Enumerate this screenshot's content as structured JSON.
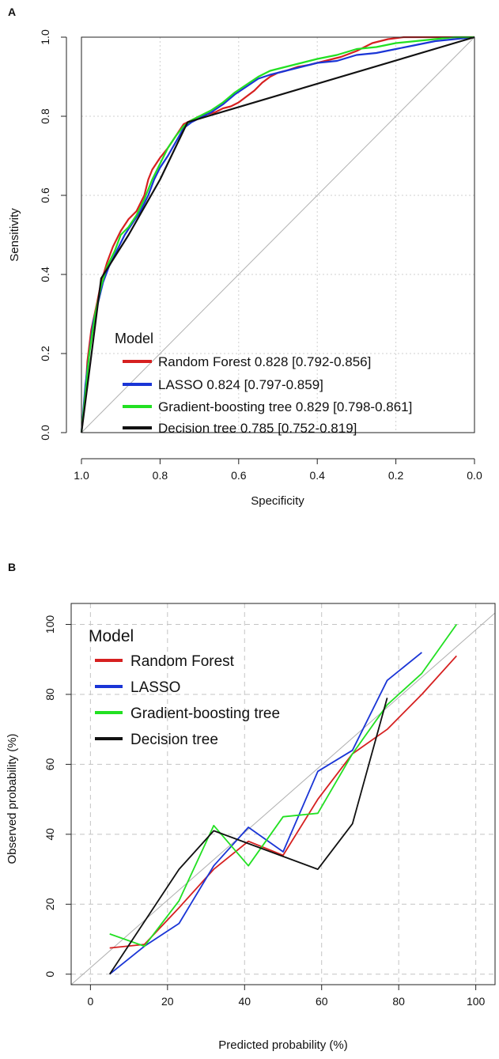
{
  "chart_data": [
    {
      "panel_label": "A",
      "type": "line",
      "title": "",
      "xlabel": "Specificity",
      "ylabel": "Sensitivity",
      "xlim": [
        1.0,
        0.0
      ],
      "ylim": [
        0.0,
        1.0
      ],
      "x_ticks": [
        "1.0",
        "0.8",
        "0.6",
        "0.4",
        "0.2",
        "0.0"
      ],
      "y_ticks": [
        "0.0",
        "0.2",
        "0.4",
        "0.6",
        "0.8",
        "1.0"
      ],
      "grid": true,
      "reference_line": "diagonal",
      "legend": {
        "title": "Model",
        "position": "bottom-right",
        "entries": [
          "Random Forest 0.828 [0.792-0.856]",
          "LASSO 0.824 [0.797-0.859]",
          "Gradient-boosting tree 0.829 [0.798-0.861]",
          "Decision tree 0.785 [0.752-0.819]"
        ]
      },
      "series": [
        {
          "name": "Random Forest",
          "color": "#d62020",
          "points": [
            [
              1.0,
              0.0
            ],
            [
              0.99,
              0.1
            ],
            [
              0.985,
              0.18
            ],
            [
              0.975,
              0.26
            ],
            [
              0.96,
              0.33
            ],
            [
              0.95,
              0.38
            ],
            [
              0.935,
              0.43
            ],
            [
              0.92,
              0.47
            ],
            [
              0.9,
              0.51
            ],
            [
              0.88,
              0.54
            ],
            [
              0.86,
              0.56
            ],
            [
              0.84,
              0.6
            ],
            [
              0.83,
              0.64
            ],
            [
              0.82,
              0.665
            ],
            [
              0.8,
              0.695
            ],
            [
              0.78,
              0.72
            ],
            [
              0.76,
              0.75
            ],
            [
              0.74,
              0.78
            ],
            [
              0.72,
              0.79
            ],
            [
              0.7,
              0.8
            ],
            [
              0.68,
              0.805
            ],
            [
              0.66,
              0.81
            ],
            [
              0.64,
              0.82
            ],
            [
              0.62,
              0.825
            ],
            [
              0.6,
              0.835
            ],
            [
              0.58,
              0.85
            ],
            [
              0.56,
              0.865
            ],
            [
              0.54,
              0.885
            ],
            [
              0.52,
              0.9
            ],
            [
              0.5,
              0.91
            ],
            [
              0.48,
              0.915
            ],
            [
              0.45,
              0.925
            ],
            [
              0.42,
              0.93
            ],
            [
              0.38,
              0.94
            ],
            [
              0.34,
              0.95
            ],
            [
              0.3,
              0.965
            ],
            [
              0.26,
              0.985
            ],
            [
              0.22,
              0.995
            ],
            [
              0.18,
              1.0
            ],
            [
              0.0,
              1.0
            ]
          ]
        },
        {
          "name": "LASSO",
          "color": "#1a35d6",
          "points": [
            [
              1.0,
              0.0
            ],
            [
              0.99,
              0.12
            ],
            [
              0.98,
              0.2
            ],
            [
              0.97,
              0.28
            ],
            [
              0.955,
              0.34
            ],
            [
              0.945,
              0.38
            ],
            [
              0.93,
              0.42
            ],
            [
              0.91,
              0.46
            ],
            [
              0.89,
              0.5
            ],
            [
              0.87,
              0.53
            ],
            [
              0.85,
              0.56
            ],
            [
              0.83,
              0.6
            ],
            [
              0.815,
              0.64
            ],
            [
              0.8,
              0.67
            ],
            [
              0.78,
              0.7
            ],
            [
              0.76,
              0.735
            ],
            [
              0.74,
              0.77
            ],
            [
              0.72,
              0.785
            ],
            [
              0.7,
              0.795
            ],
            [
              0.67,
              0.81
            ],
            [
              0.64,
              0.83
            ],
            [
              0.61,
              0.855
            ],
            [
              0.58,
              0.875
            ],
            [
              0.55,
              0.895
            ],
            [
              0.52,
              0.905
            ],
            [
              0.48,
              0.915
            ],
            [
              0.44,
              0.925
            ],
            [
              0.4,
              0.935
            ],
            [
              0.35,
              0.94
            ],
            [
              0.3,
              0.955
            ],
            [
              0.25,
              0.96
            ],
            [
              0.2,
              0.97
            ],
            [
              0.15,
              0.98
            ],
            [
              0.1,
              0.99
            ],
            [
              0.05,
              0.995
            ],
            [
              0.0,
              1.0
            ]
          ]
        },
        {
          "name": "Gradient-boosting tree",
          "color": "#22e022",
          "points": [
            [
              1.0,
              0.0
            ],
            [
              0.99,
              0.1
            ],
            [
              0.98,
              0.2
            ],
            [
              0.965,
              0.3
            ],
            [
              0.95,
              0.37
            ],
            [
              0.935,
              0.42
            ],
            [
              0.915,
              0.46
            ],
            [
              0.9,
              0.5
            ],
            [
              0.88,
              0.52
            ],
            [
              0.86,
              0.55
            ],
            [
              0.84,
              0.59
            ],
            [
              0.82,
              0.64
            ],
            [
              0.8,
              0.68
            ],
            [
              0.78,
              0.72
            ],
            [
              0.76,
              0.75
            ],
            [
              0.74,
              0.775
            ],
            [
              0.72,
              0.79
            ],
            [
              0.7,
              0.8
            ],
            [
              0.67,
              0.815
            ],
            [
              0.64,
              0.835
            ],
            [
              0.61,
              0.86
            ],
            [
              0.58,
              0.88
            ],
            [
              0.55,
              0.9
            ],
            [
              0.52,
              0.915
            ],
            [
              0.48,
              0.925
            ],
            [
              0.44,
              0.935
            ],
            [
              0.4,
              0.945
            ],
            [
              0.35,
              0.955
            ],
            [
              0.3,
              0.97
            ],
            [
              0.25,
              0.975
            ],
            [
              0.2,
              0.985
            ],
            [
              0.15,
              0.99
            ],
            [
              0.1,
              0.995
            ],
            [
              0.05,
              1.0
            ],
            [
              0.0,
              1.0
            ]
          ]
        },
        {
          "name": "Decision tree",
          "color": "#111111",
          "points": [
            [
              1.0,
              0.0
            ],
            [
              0.95,
              0.39
            ],
            [
              0.88,
              0.5
            ],
            [
              0.8,
              0.64
            ],
            [
              0.73,
              0.785
            ],
            [
              0.0,
              1.0
            ]
          ]
        }
      ]
    },
    {
      "panel_label": "B",
      "type": "line",
      "title": "",
      "xlabel": "Predicted probability (%)",
      "ylabel": "Observed probability (%)",
      "xlim": [
        -5,
        105
      ],
      "ylim": [
        -3,
        106
      ],
      "x_ticks": [
        "0",
        "20",
        "40",
        "60",
        "80",
        "100"
      ],
      "y_ticks": [
        "0",
        "20",
        "40",
        "60",
        "80",
        "100"
      ],
      "grid": true,
      "reference_line": "diagonal",
      "legend": {
        "title": "Model",
        "position": "top-left",
        "entries": [
          "Random Forest",
          "LASSO",
          "Gradient-boosting tree",
          "Decision tree"
        ]
      },
      "series": [
        {
          "name": "Random Forest",
          "color": "#d62020",
          "points": [
            [
              5,
              7.5
            ],
            [
              14,
              8.5
            ],
            [
              23,
              19
            ],
            [
              32,
              30
            ],
            [
              41,
              38
            ],
            [
              50,
              34
            ],
            [
              59,
              50
            ],
            [
              68,
              63
            ],
            [
              77,
              70
            ],
            [
              86,
              80
            ],
            [
              95,
              91
            ]
          ]
        },
        {
          "name": "LASSO",
          "color": "#1a35d6",
          "points": [
            [
              5,
              0
            ],
            [
              14,
              8
            ],
            [
              23,
              14.5
            ],
            [
              32,
              31
            ],
            [
              41,
              42
            ],
            [
              50,
              35
            ],
            [
              59,
              58
            ],
            [
              68,
              64
            ],
            [
              77,
              84
            ],
            [
              86,
              92
            ]
          ]
        },
        {
          "name": "Gradient-boosting tree",
          "color": "#22e022",
          "points": [
            [
              5,
              11.5
            ],
            [
              14,
              8
            ],
            [
              23,
              21
            ],
            [
              32,
              42.5
            ],
            [
              41,
              31
            ],
            [
              50,
              45
            ],
            [
              59,
              46
            ],
            [
              68,
              63
            ],
            [
              77,
              77
            ],
            [
              86,
              86
            ],
            [
              95,
              100
            ]
          ]
        },
        {
          "name": "Decision tree",
          "color": "#111111",
          "points": [
            [
              5,
              0
            ],
            [
              23,
              30
            ],
            [
              32,
              41
            ],
            [
              59,
              30
            ],
            [
              68,
              43
            ],
            [
              77,
              79
            ]
          ]
        }
      ]
    }
  ]
}
